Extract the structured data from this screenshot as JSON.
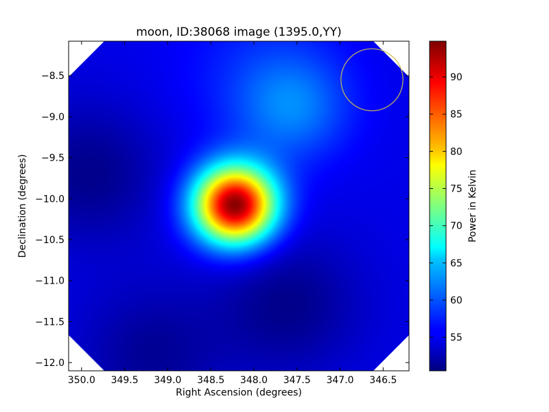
{
  "chart_data": {
    "type": "heatmap",
    "title": "moon, ID:38068 image (1395.0,YY)",
    "xlabel": "Right Ascension (degrees)",
    "ylabel": "Declination (degrees)",
    "xlim": [
      350.15,
      346.2
    ],
    "ylim": [
      -12.1,
      -8.08
    ],
    "x_ticks": [
      350.0,
      349.5,
      349.0,
      348.5,
      348.0,
      347.5,
      347.0,
      346.5
    ],
    "x_tick_labels": [
      "350.0",
      "349.5",
      "349.0",
      "348.5",
      "348.0",
      "347.5",
      "347.0",
      "346.5"
    ],
    "y_ticks": [
      -8.5,
      -9.0,
      -9.5,
      -10.0,
      -10.5,
      -11.0,
      -11.5,
      -12.0
    ],
    "y_tick_labels": [
      "−8.5",
      "−9.0",
      "−9.5",
      "−10.0",
      "−10.5",
      "−11.0",
      "−11.5",
      "−12.0"
    ],
    "colormap": "jet",
    "background_level": 55,
    "sources": [
      {
        "ra": 348.22,
        "dec": -10.08,
        "peak": 94.5,
        "sigma_deg": 0.33,
        "kind": "bright source"
      },
      {
        "ra": 347.55,
        "dec": -8.9,
        "peak": 60.5,
        "sigma_deg": 0.45,
        "kind": "diffuse"
      },
      {
        "ra": 347.9,
        "dec": -8.45,
        "peak": 57.5,
        "sigma_deg": 0.7,
        "kind": "diffuse"
      }
    ],
    "low_regions": [
      {
        "ra": 349.9,
        "dec": -9.7,
        "level": 51.0
      },
      {
        "ra": 347.6,
        "dec": -11.3,
        "level": 51.0
      },
      {
        "ra": 349.2,
        "dec": -11.9,
        "level": 51.5
      }
    ],
    "annotation": {
      "shape": "circle",
      "ra": 346.63,
      "dec": -8.55,
      "radius_deg": 0.36,
      "color": "#c8b850"
    },
    "colorbar": {
      "label": "Power in Kelvin",
      "range": [
        50.5,
        94.8
      ],
      "ticks": [
        55,
        60,
        65,
        70,
        75,
        80,
        85,
        90
      ],
      "tick_labels": [
        "55",
        "60",
        "65",
        "70",
        "75",
        "80",
        "85",
        "90"
      ]
    },
    "grid": false
  }
}
